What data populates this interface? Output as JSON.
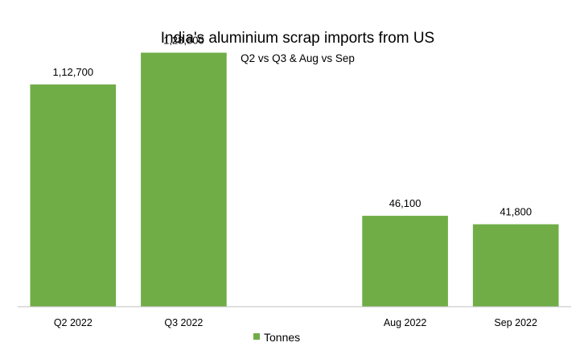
{
  "chart_data": {
    "type": "bar",
    "title": "India's aluminium scrap imports from US",
    "subtitle": "Q2 vs Q3 & Aug vs Sep",
    "categories": [
      "Q2 2022",
      "Q3 2022",
      "",
      "Aug 2022",
      "Sep 2022"
    ],
    "series": [
      {
        "name": "Tonnes",
        "values": [
          112700,
          128800,
          null,
          46100,
          41800
        ],
        "data_labels": [
          "1,12,700",
          "1,28,800",
          "",
          "46,100",
          "41,800"
        ],
        "color": "#70AD47"
      }
    ],
    "ylim": [
      0,
      140000
    ],
    "grid": false,
    "legend_position": "bottom",
    "axis_color": "#BFBFBF"
  }
}
